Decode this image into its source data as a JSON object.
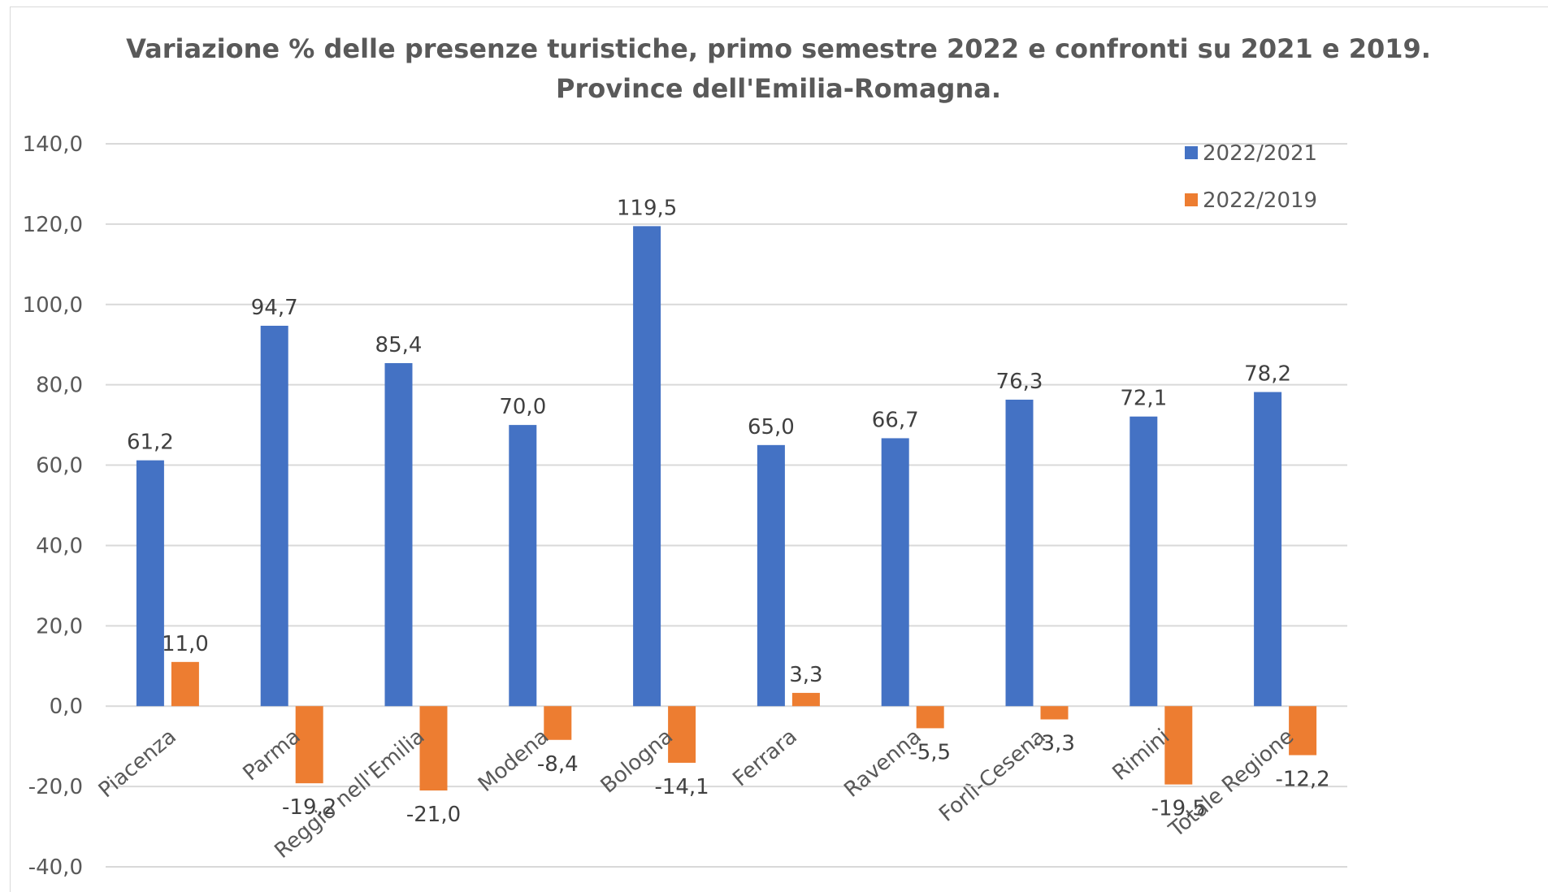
{
  "chart_data": {
    "type": "bar",
    "title_lines": [
      "Variazione % delle presenze turistiche, primo semestre 2022 e confronti su 2021 e 2019.",
      "Province dell'Emilia-Romagna."
    ],
    "categories": [
      "Piacenza",
      "Parma",
      "Reggio nell'Emilia",
      "Modena",
      "Bologna",
      "Ferrara",
      "Ravenna",
      "Forlì-Cesena",
      "Rimini",
      "Totale Regione"
    ],
    "series": [
      {
        "name": "2022/2021",
        "color": "#4472c4",
        "values": [
          61.2,
          94.7,
          85.4,
          70.0,
          119.5,
          65.0,
          66.7,
          76.3,
          72.1,
          78.2
        ],
        "labels": [
          "61,2",
          "94,7",
          "85,4",
          "70,0",
          "119,5",
          "65,0",
          "66,7",
          "76,3",
          "72,1",
          "78,2"
        ]
      },
      {
        "name": "2022/2019",
        "color": "#ed7d31",
        "values": [
          11.0,
          -19.2,
          -21.0,
          -8.4,
          -14.1,
          3.3,
          -5.5,
          -3.3,
          -19.5,
          -12.2
        ],
        "labels": [
          "11,0",
          "-19,2",
          "-21,0",
          "-8,4",
          "-14,1",
          "3,3",
          "-5,5",
          "-3,3",
          "-19,5",
          "-12,2"
        ]
      }
    ],
    "ylim": [
      -40,
      140
    ],
    "yticks": [
      140,
      120,
      100,
      80,
      60,
      40,
      20,
      0,
      -20,
      -40
    ],
    "ytick_labels": [
      "140,0",
      "120,0",
      "100,0",
      "80,0",
      "60,0",
      "40,0",
      "20,0",
      "0,0",
      "-20,0",
      "-40,0"
    ],
    "grid": true,
    "legend_position": "top-right"
  }
}
